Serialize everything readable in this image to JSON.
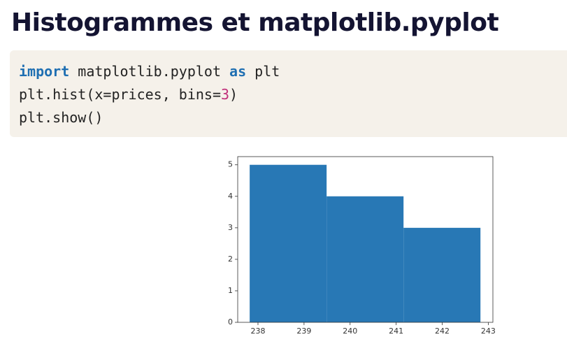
{
  "header": {
    "title": "Histogrammes et matplotlib.pyplot"
  },
  "code": [
    [
      {
        "text": "import",
        "color": "#1f6fb2"
      },
      {
        "text": " matplotlib.pyplot "
      },
      {
        "text": "as",
        "color": "#1f6fb2"
      },
      {
        "text": " plt"
      }
    ],
    [
      {
        "text": "plt.hist(x=prices, bins="
      },
      {
        "text": "3",
        "color": "#c0307a"
      },
      {
        "text": ")"
      }
    ],
    [
      {
        "text": "plt.show()"
      }
    ]
  ],
  "chart_data": {
    "type": "histogram",
    "bins": [
      237.82,
      239.49,
      241.16,
      242.83
    ],
    "values": [
      5,
      4,
      3
    ],
    "color": "#2878b5",
    "xlim": [
      237.56,
      243.1
    ],
    "xticks": [
      238,
      239,
      240,
      241,
      242,
      243
    ],
    "ylim": [
      0,
      5.26
    ],
    "yticks": [
      0,
      1,
      2,
      3,
      4,
      5
    ]
  }
}
